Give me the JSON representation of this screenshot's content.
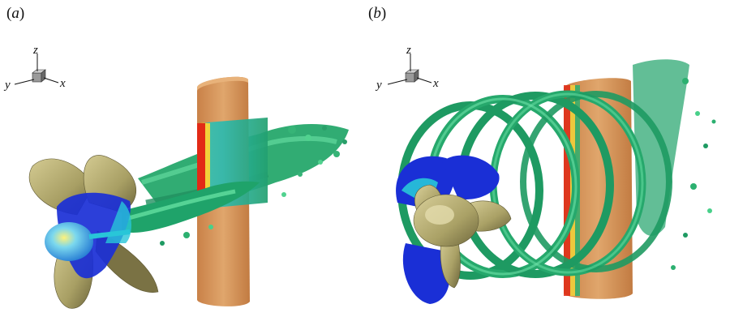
{
  "panels": [
    {
      "label_open": "(",
      "label_letter": "a",
      "label_close": ")",
      "triad": {
        "up": "z",
        "left": "y",
        "right": "x"
      }
    },
    {
      "label_open": "(",
      "label_letter": "b",
      "label_close": ")",
      "triad": {
        "up": "z",
        "left": "y",
        "right": "x"
      }
    }
  ],
  "colors": {
    "blade": "#b9b07a",
    "blade_dark": "#6e683f",
    "rudder": "#d89a5e",
    "rudder_dark": "#b87a44",
    "vortex_green": "#1fa36a",
    "vortex_light": "#48d08a",
    "pressure_blue": "#1a2fd6",
    "pressure_cyan": "#28c6d8",
    "pressure_red": "#e52a16",
    "pressure_yellow": "#f2e23a"
  }
}
